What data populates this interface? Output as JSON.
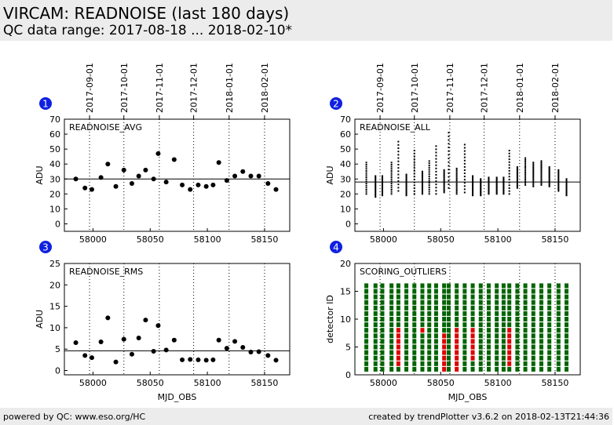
{
  "header": {
    "title": "VIRCAM: READNOISE (last 180 days)",
    "subtitle": "QC data range: 2017-08-18 ... 2018-02-10*"
  },
  "footer": {
    "left": "powered by QC: www.eso.org/HC",
    "right": "created by trendPlotter v3.6.2 on 2018-02-13T21:44:36"
  },
  "colors": {
    "header_bg": "#ececec",
    "badge": "#1020e0",
    "ok": "#006400",
    "outlier": "#dd0000"
  },
  "chart_data": [
    {
      "panel": "1",
      "type": "scatter",
      "title": "READNOISE_AVG",
      "xlabel": "",
      "ylabel": "ADU",
      "xlim": [
        57975,
        58172
      ],
      "ylim": [
        -5,
        70
      ],
      "xticks": [
        58000,
        58050,
        58100,
        58150
      ],
      "yticks": [
        0,
        10,
        20,
        30,
        40,
        50,
        60,
        70
      ],
      "date_ticks": [
        "2017-09-01",
        "2017-10-01",
        "2017-11-01",
        "2017-12-01",
        "2018-01-01",
        "2018-02-01"
      ],
      "date_mjd": [
        57997,
        58027,
        58058,
        58088,
        58119,
        58150
      ],
      "reference_line": 30,
      "x": [
        57985,
        57993,
        57999,
        58007,
        58013,
        58020,
        58027,
        58034,
        58040,
        58046,
        58053,
        58057,
        58064,
        58071,
        58078,
        58085,
        58092,
        58099,
        58105,
        58110,
        58117,
        58124,
        58131,
        58138,
        58145,
        58153,
        58160
      ],
      "y": [
        30,
        24,
        23,
        31,
        40,
        25,
        36,
        27,
        32,
        36,
        30,
        47,
        28,
        43,
        26,
        23,
        26,
        25,
        26,
        41,
        29,
        32,
        35,
        32,
        32,
        27,
        23
      ]
    },
    {
      "panel": "2",
      "type": "scatter",
      "title": "READNOISE_ALL",
      "xlabel": "",
      "ylabel": "ADU",
      "xlim": [
        57975,
        58172
      ],
      "ylim": [
        -5,
        70
      ],
      "xticks": [
        58000,
        58050,
        58100,
        58150
      ],
      "yticks": [
        0,
        10,
        20,
        30,
        40,
        50,
        60,
        70
      ],
      "date_ticks": [
        "2017-09-01",
        "2017-10-01",
        "2017-11-01",
        "2017-12-01",
        "2018-01-01",
        "2018-02-01"
      ],
      "date_mjd": [
        57997,
        58027,
        58058,
        58088,
        58119,
        58150
      ],
      "reference_line": 28,
      "x": [
        57985,
        57993,
        57999,
        58007,
        58013,
        58020,
        58027,
        58034,
        58040,
        58046,
        58053,
        58057,
        58064,
        58071,
        58078,
        58085,
        58092,
        58099,
        58105,
        58110,
        58117,
        58124,
        58131,
        58138,
        58145,
        58153,
        58160
      ],
      "y_min": [
        20,
        18,
        19,
        20,
        22,
        19,
        20,
        20,
        20,
        20,
        21,
        24,
        20,
        21,
        19,
        19,
        20,
        20,
        20,
        20,
        24,
        26,
        25,
        26,
        25,
        22,
        19
      ],
      "y_max": [
        41,
        32,
        32,
        41,
        55,
        33,
        49,
        35,
        42,
        52,
        36,
        61,
        37,
        53,
        32,
        30,
        31,
        31,
        31,
        49,
        38,
        44,
        41,
        42,
        38,
        36,
        30
      ]
    },
    {
      "panel": "3",
      "type": "scatter",
      "title": "READNOISE_RMS",
      "xlabel": "MJD_OBS",
      "ylabel": "ADU",
      "xlim": [
        57975,
        58172
      ],
      "ylim": [
        -1,
        25
      ],
      "xticks": [
        58000,
        58050,
        58100,
        58150
      ],
      "yticks": [
        0,
        5,
        10,
        15,
        20,
        25
      ],
      "date_mjd": [
        57997,
        58027,
        58058,
        58088,
        58119,
        58150
      ],
      "reference_line": 4.6,
      "x": [
        57985,
        57993,
        57999,
        58007,
        58013,
        58020,
        58027,
        58034,
        58040,
        58046,
        58053,
        58057,
        58064,
        58071,
        58078,
        58085,
        58092,
        58099,
        58105,
        58110,
        58117,
        58124,
        58131,
        58138,
        58145,
        58153,
        58160
      ],
      "y": [
        6.5,
        3.5,
        3,
        6.7,
        12.3,
        2,
        7.3,
        3.8,
        7.6,
        11.8,
        4.5,
        10.5,
        4.8,
        7.1,
        2.5,
        2.6,
        2.5,
        2.4,
        2.5,
        7.1,
        5.2,
        6.8,
        5.4,
        4.3,
        4.4,
        3.5,
        2.4
      ]
    },
    {
      "panel": "4",
      "type": "scatter",
      "title": "SCORING_OUTLIERS",
      "xlabel": "MJD_OBS",
      "ylabel": "detector ID",
      "xlim": [
        57975,
        58172
      ],
      "ylim": [
        0,
        20
      ],
      "xticks": [
        58000,
        58050,
        58100,
        58150
      ],
      "yticks": [
        0,
        5,
        10,
        15,
        20
      ],
      "date_mjd": [
        57997,
        58027,
        58058,
        58088,
        58119,
        58150
      ],
      "x": [
        57985,
        57993,
        57999,
        58007,
        58013,
        58020,
        58027,
        58034,
        58040,
        58046,
        58053,
        58057,
        58064,
        58071,
        58078,
        58085,
        58092,
        58099,
        58105,
        58110,
        58117,
        58124,
        58131,
        58138,
        58145,
        58153,
        58160
      ],
      "detectors": [
        1,
        2,
        3,
        4,
        5,
        6,
        7,
        8,
        9,
        10,
        11,
        12,
        13,
        14,
        15,
        16
      ],
      "outliers": [
        [
          58013,
          2
        ],
        [
          58013,
          3
        ],
        [
          58013,
          4
        ],
        [
          58013,
          5
        ],
        [
          58013,
          6
        ],
        [
          58013,
          7
        ],
        [
          58013,
          8
        ],
        [
          58034,
          8
        ],
        [
          58053,
          1
        ],
        [
          58053,
          2
        ],
        [
          58053,
          3
        ],
        [
          58053,
          4
        ],
        [
          58053,
          5
        ],
        [
          58053,
          6
        ],
        [
          58053,
          7
        ],
        [
          58064,
          1
        ],
        [
          58064,
          2
        ],
        [
          58064,
          3
        ],
        [
          58064,
          4
        ],
        [
          58064,
          5
        ],
        [
          58064,
          6
        ],
        [
          58064,
          7
        ],
        [
          58064,
          8
        ],
        [
          58078,
          3
        ],
        [
          58078,
          4
        ],
        [
          58078,
          5
        ],
        [
          58078,
          6
        ],
        [
          58078,
          7
        ],
        [
          58078,
          8
        ],
        [
          58110,
          2
        ],
        [
          58110,
          3
        ],
        [
          58110,
          4
        ],
        [
          58110,
          5
        ],
        [
          58110,
          6
        ],
        [
          58110,
          7
        ],
        [
          58110,
          8
        ]
      ]
    }
  ]
}
